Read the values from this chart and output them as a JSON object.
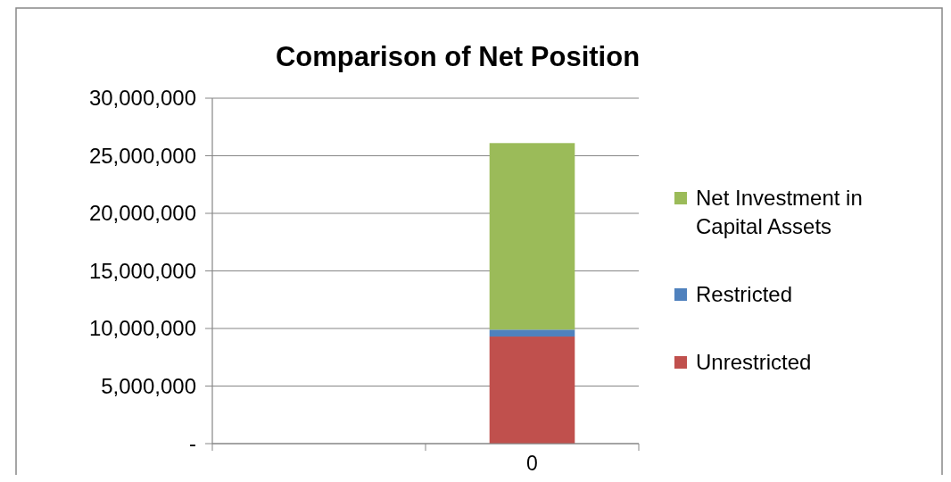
{
  "chart_data": {
    "type": "bar",
    "title": "Comparison of Net Position",
    "categories": [
      null,
      "0"
    ],
    "stacked": true,
    "series": [
      {
        "name": "Unrestricted",
        "color": "#c0504d",
        "values": [
          null,
          9300000
        ]
      },
      {
        "name": "Restricted",
        "color": "#4f81bd",
        "values": [
          null,
          600000
        ]
      },
      {
        "name": "Net Investment in Capital Assets",
        "color": "#9bbb59",
        "values": [
          null,
          16200000
        ]
      }
    ],
    "ylim": [
      0,
      30000000
    ],
    "yticks": [
      {
        "value": 0,
        "label": "-"
      },
      {
        "value": 5000000,
        "label": "5,000,000"
      },
      {
        "value": 10000000,
        "label": "10,000,000"
      },
      {
        "value": 15000000,
        "label": "15,000,000"
      },
      {
        "value": 20000000,
        "label": "20,000,000"
      },
      {
        "value": 25000000,
        "label": "25,000,000"
      },
      {
        "value": 30000000,
        "label": "30,000,000"
      }
    ],
    "grid": "y",
    "legend": "right"
  }
}
